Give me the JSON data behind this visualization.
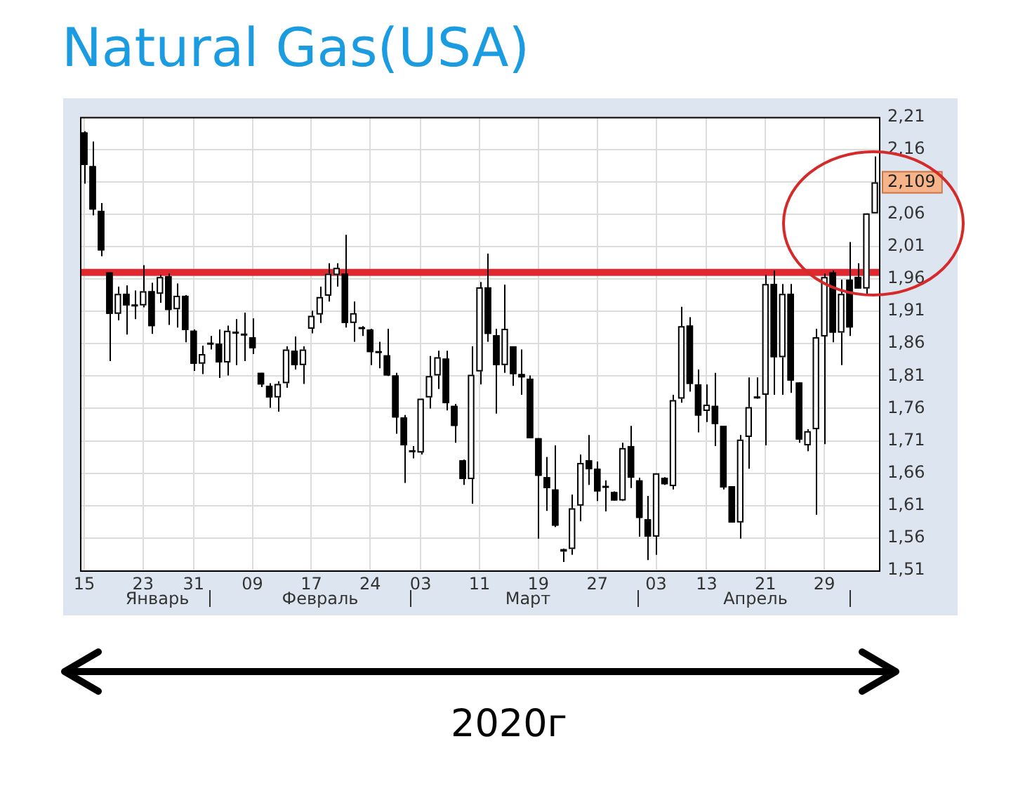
{
  "chart_data": {
    "type": "candlestick",
    "title": "Natural Gas(USA)",
    "xlabel": "2020г",
    "color": "#000000",
    "categories": [
      "15",
      null,
      null,
      null,
      null,
      null,
      null,
      "23",
      null,
      null,
      null,
      null,
      null,
      "31",
      null,
      null,
      null,
      null,
      null,
      null,
      "09",
      null,
      null,
      null,
      null,
      null,
      null,
      "17",
      null,
      null,
      null,
      null,
      null,
      null,
      "24",
      null,
      null,
      null,
      null,
      null,
      "03",
      null,
      null,
      null,
      null,
      null,
      null,
      "11",
      null,
      null,
      null,
      null,
      null,
      null,
      "19",
      null,
      null,
      null,
      null,
      null,
      null,
      "27",
      null,
      null,
      null,
      null,
      null,
      null,
      "03",
      null,
      null,
      null,
      null,
      null,
      "13",
      null,
      null,
      null,
      null,
      null,
      null,
      "21",
      null,
      null,
      null,
      null,
      null,
      null,
      "29",
      null,
      null,
      null,
      null,
      null,
      null
    ],
    "ohlc": [
      [
        2.186,
        2.188,
        2.107,
        2.136
      ],
      [
        2.134,
        2.172,
        2.058,
        2.067
      ],
      [
        2.065,
        2.077,
        1.995,
        2.004
      ],
      [
        1.97,
        1.97,
        1.833,
        1.906
      ],
      [
        1.906,
        1.948,
        1.896,
        1.937
      ],
      [
        1.937,
        1.95,
        1.874,
        1.919
      ],
      [
        1.919,
        1.942,
        1.898,
        1.919
      ],
      [
        1.919,
        1.981,
        1.916,
        1.941
      ],
      [
        1.941,
        1.954,
        1.875,
        1.887
      ],
      [
        1.937,
        1.966,
        1.923,
        1.963
      ],
      [
        1.964,
        1.968,
        1.889,
        1.912
      ],
      [
        1.913,
        1.953,
        1.885,
        1.934
      ],
      [
        1.934,
        1.935,
        1.862,
        1.881
      ],
      [
        1.88,
        1.882,
        1.818,
        1.829
      ],
      [
        1.829,
        1.857,
        1.813,
        1.844
      ],
      [
        1.86,
        1.872,
        1.851,
        1.86
      ],
      [
        1.86,
        1.882,
        1.807,
        1.831
      ],
      [
        1.831,
        1.888,
        1.811,
        1.88
      ],
      [
        1.877,
        1.898,
        1.827,
        1.877
      ],
      [
        1.874,
        1.908,
        1.833,
        1.874
      ],
      [
        1.87,
        1.899,
        1.844,
        1.853
      ],
      [
        1.815,
        1.815,
        1.793,
        1.797
      ],
      [
        1.795,
        1.799,
        1.761,
        1.777
      ],
      [
        1.777,
        1.802,
        1.755,
        1.798
      ],
      [
        1.799,
        1.856,
        1.792,
        1.851
      ],
      [
        1.849,
        1.871,
        1.82,
        1.827
      ],
      [
        1.827,
        1.856,
        1.798,
        1.851
      ],
      [
        1.883,
        1.911,
        1.876,
        1.903
      ],
      [
        1.905,
        1.948,
        1.892,
        1.932
      ],
      [
        1.934,
        1.984,
        1.925,
        1.968
      ],
      [
        1.966,
        1.984,
        1.948,
        1.977
      ],
      [
        1.968,
        2.028,
        1.885,
        1.892
      ],
      [
        1.892,
        1.925,
        1.863,
        1.907
      ],
      [
        1.884,
        1.887,
        1.872,
        1.884
      ],
      [
        1.882,
        1.883,
        1.827,
        1.847
      ],
      [
        1.847,
        1.863,
        1.822,
        1.847
      ],
      [
        1.842,
        1.883,
        1.81,
        1.811
      ],
      [
        1.811,
        1.815,
        1.721,
        1.746
      ],
      [
        1.746,
        1.75,
        1.645,
        1.703
      ],
      [
        1.694,
        1.702,
        1.683,
        1.694
      ],
      [
        1.692,
        1.775,
        1.689,
        1.775
      ],
      [
        1.777,
        1.841,
        1.76,
        1.81
      ],
      [
        1.811,
        1.849,
        1.79,
        1.839
      ],
      [
        1.837,
        1.849,
        1.757,
        1.768
      ],
      [
        1.764,
        1.767,
        1.707,
        1.733
      ],
      [
        1.68,
        1.681,
        1.642,
        1.651
      ],
      [
        1.651,
        1.856,
        1.613,
        1.812
      ],
      [
        1.817,
        1.955,
        1.797,
        1.947
      ],
      [
        1.947,
        1.999,
        1.863,
        1.875
      ],
      [
        1.873,
        1.883,
        1.752,
        1.827
      ],
      [
        1.827,
        1.951,
        1.815,
        1.883
      ],
      [
        1.856,
        1.856,
        1.795,
        1.813
      ],
      [
        1.813,
        1.851,
        1.781,
        1.808
      ],
      [
        1.806,
        1.811,
        1.714,
        1.714
      ],
      [
        1.714,
        1.714,
        1.559,
        1.656
      ],
      [
        1.654,
        1.685,
        1.602,
        1.637
      ],
      [
        1.635,
        1.703,
        1.577,
        1.579
      ],
      [
        1.539,
        1.544,
        1.523,
        1.543
      ],
      [
        1.543,
        1.627,
        1.534,
        1.606
      ],
      [
        1.61,
        1.689,
        1.586,
        1.676
      ],
      [
        1.68,
        1.719,
        1.642,
        1.666
      ],
      [
        1.667,
        1.678,
        1.617,
        1.632
      ],
      [
        1.639,
        1.649,
        1.601,
        1.639
      ],
      [
        1.631,
        1.632,
        1.618,
        1.618
      ],
      [
        1.618,
        1.707,
        1.617,
        1.699
      ],
      [
        1.702,
        1.733,
        1.637,
        1.653
      ],
      [
        1.649,
        1.653,
        1.562,
        1.591
      ],
      [
        1.589,
        1.625,
        1.526,
        1.562
      ],
      [
        1.562,
        1.66,
        1.534,
        1.66
      ],
      [
        1.653,
        1.654,
        1.642,
        1.643
      ],
      [
        1.64,
        1.781,
        1.635,
        1.773
      ],
      [
        1.775,
        1.917,
        1.769,
        1.887
      ],
      [
        1.888,
        1.901,
        1.786,
        1.798
      ],
      [
        1.797,
        1.82,
        1.723,
        1.749
      ],
      [
        1.756,
        1.797,
        1.739,
        1.766
      ],
      [
        1.764,
        1.815,
        1.702,
        1.736
      ],
      [
        1.733,
        1.733,
        1.635,
        1.638
      ],
      [
        1.64,
        1.64,
        1.584,
        1.584
      ],
      [
        1.584,
        1.719,
        1.559,
        1.712
      ],
      [
        1.716,
        1.808,
        1.667,
        1.762
      ],
      [
        1.777,
        1.808,
        1.775,
        1.777
      ],
      [
        1.781,
        1.966,
        1.703,
        1.952
      ],
      [
        1.952,
        1.973,
        1.781,
        1.839
      ],
      [
        1.839,
        1.952,
        1.781,
        1.937
      ],
      [
        1.937,
        1.952,
        1.784,
        1.803
      ],
      [
        1.8,
        1.8,
        1.707,
        1.712
      ],
      [
        1.703,
        1.728,
        1.694,
        1.725
      ],
      [
        1.728,
        1.883,
        1.596,
        1.87
      ],
      [
        1.871,
        1.968,
        1.705,
        1.963
      ],
      [
        1.97,
        1.973,
        1.862,
        1.877
      ],
      [
        1.877,
        1.959,
        1.827,
        1.937
      ],
      [
        1.959,
        2.017,
        1.872,
        1.885
      ],
      [
        1.963,
        1.984,
        1.945,
        1.945
      ],
      [
        1.945,
        2.061,
        1.937,
        2.061
      ],
      [
        2.061,
        2.149,
        2.061,
        2.109
      ]
    ],
    "colors": [
      "#000000",
      "#000000",
      "#000000",
      "#000000",
      "#ffffff",
      "#000000",
      "#000000",
      "#ffffff",
      "#000000",
      "#ffffff",
      "#000000",
      "#ffffff",
      "#000000",
      "#000000",
      "#ffffff",
      "#000000",
      "#000000",
      "#ffffff",
      "#000000",
      "#000000",
      "#000000",
      "#000000",
      "#000000",
      "#ffffff",
      "#ffffff",
      "#000000",
      "#ffffff",
      "#ffffff",
      "#ffffff",
      "#ffffff",
      "#ffffff",
      "#000000",
      "#ffffff",
      "#000000",
      "#000000",
      "#000000",
      "#000000",
      "#000000",
      "#000000",
      "#000000",
      "#ffffff",
      "#ffffff",
      "#ffffff",
      "#000000",
      "#000000",
      "#000000",
      "#ffffff",
      "#ffffff",
      "#000000",
      "#000000",
      "#ffffff",
      "#000000",
      "#000000",
      "#000000",
      "#000000",
      "#000000",
      "#000000",
      "#ffffff",
      "#ffffff",
      "#ffffff",
      "#000000",
      "#000000",
      "#000000",
      "#000000",
      "#ffffff",
      "#000000",
      "#000000",
      "#000000",
      "#ffffff",
      "#000000",
      "#ffffff",
      "#ffffff",
      "#000000",
      "#000000",
      "#ffffff",
      "#000000",
      "#000000",
      "#000000",
      "#ffffff",
      "#ffffff",
      "#000000",
      "#ffffff",
      "#000000",
      "#ffffff",
      "#000000",
      "#000000",
      "#ffffff",
      "#ffffff",
      "#ffffff",
      "#000000",
      "#ffffff",
      "#000000",
      "#000000",
      "#ffffff",
      "#ffffff"
    ],
    "ylim": [
      1.51,
      2.21
    ],
    "yticks": [
      {
        "value": 1.51,
        "label": "1,51"
      },
      {
        "value": 1.56,
        "label": "1,56"
      },
      {
        "value": 1.61,
        "label": "1,61"
      },
      {
        "value": 1.66,
        "label": "1,66"
      },
      {
        "value": 1.71,
        "label": "1,71"
      },
      {
        "value": 1.76,
        "label": "1,76"
      },
      {
        "value": 1.81,
        "label": "1,81"
      },
      {
        "value": 1.86,
        "label": "1,86"
      },
      {
        "value": 1.91,
        "label": "1,91"
      },
      {
        "value": 1.96,
        "label": "1,96"
      },
      {
        "value": 2.01,
        "label": "2,01"
      },
      {
        "value": 2.06,
        "label": "2,06"
      },
      {
        "value": 2.11,
        "label": null
      },
      {
        "value": 2.16,
        "label": "2,16"
      },
      {
        "value": 2.21,
        "label": "2,21"
      }
    ],
    "grid": true,
    "ref_lines": [
      {
        "axis": "y",
        "value": 1.97,
        "color": "#e0282e"
      }
    ],
    "annotations": [
      "Январь",
      "Февраль",
      "Март",
      "Апрель",
      {
        "text": "2,109",
        "y": 2.109
      }
    ]
  }
}
